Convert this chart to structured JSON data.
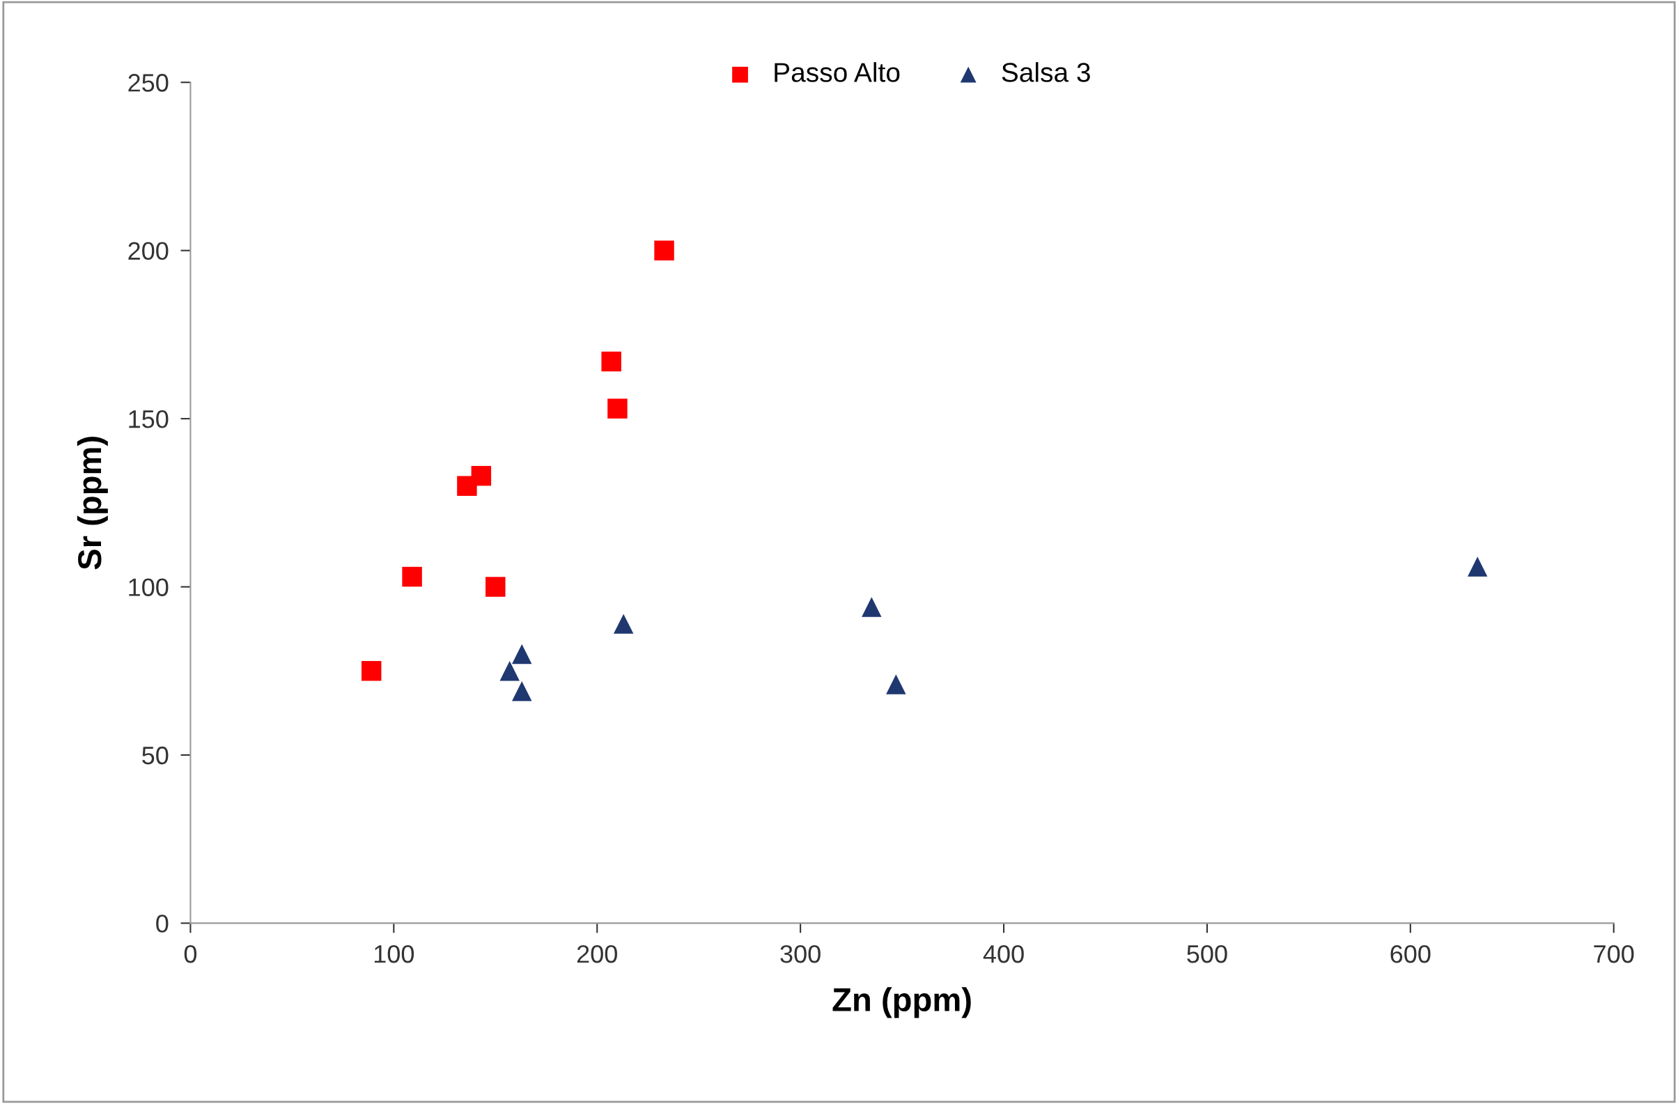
{
  "chart_data": {
    "type": "scatter",
    "xlabel": "Zn (ppm)",
    "ylabel": "Sr (ppm)",
    "xlim": [
      0,
      700
    ],
    "xticks": [
      0,
      100,
      200,
      300,
      400,
      500,
      600,
      700
    ],
    "ylim": [
      0,
      250
    ],
    "yticks": [
      0,
      50,
      100,
      150,
      200,
      250
    ],
    "grid": false,
    "legend": "top",
    "series": [
      {
        "name": "Passo Alto",
        "color": "#ff0000",
        "marker": "square",
        "x": [
          89,
          109,
          150,
          136,
          143,
          207,
          210,
          233
        ],
        "values": [
          75,
          103,
          100,
          130,
          133,
          167,
          153,
          200
        ]
      },
      {
        "name": "Salsa 3",
        "color": "#1f3870",
        "marker": "triangle",
        "x": [
          157,
          163,
          163,
          213,
          335,
          347,
          633
        ],
        "values": [
          75,
          80,
          69,
          89,
          94,
          71,
          106
        ]
      }
    ]
  }
}
